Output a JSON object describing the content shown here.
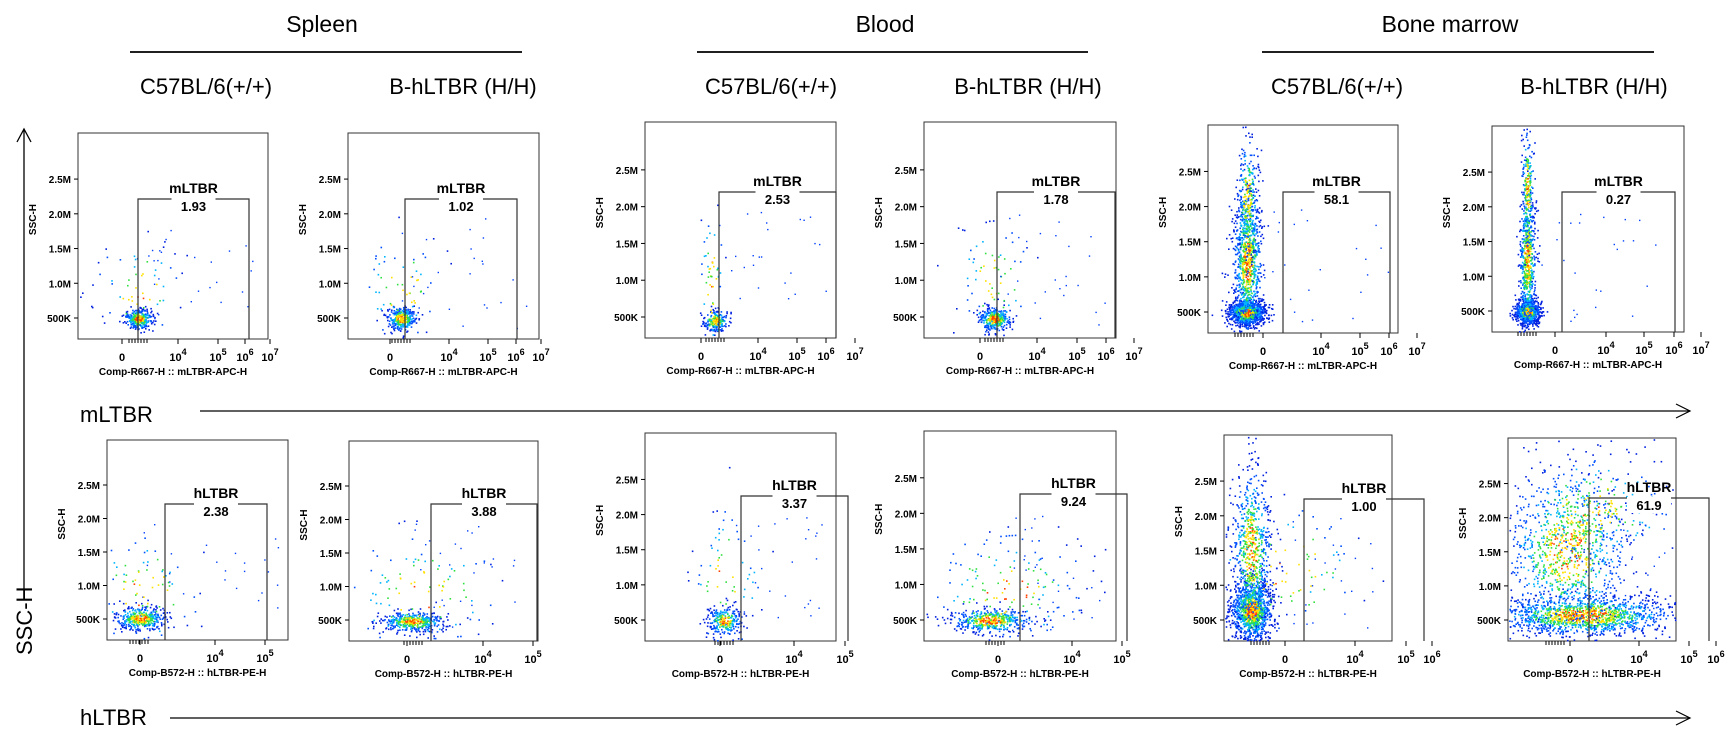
{
  "tissues": [
    "Spleen",
    "Blood",
    "Bone marrow"
  ],
  "genotypes": [
    "C57BL/6(+/+)",
    "B-hLTBR (H/H)"
  ],
  "y_axis_label": "SSC-H",
  "row_labels": [
    "mLTBR",
    "hLTBR"
  ],
  "chart_data": [
    {
      "type": "scatter",
      "tissue": "Spleen",
      "genotype": "C57BL/6(+/+)",
      "ylabel": "SSC-H",
      "xlabel": "Comp-R667-H :: mLTBR-APC-H",
      "yticks": [
        "500K",
        "1.0M",
        "1.5M",
        "2.0M",
        "2.5M"
      ],
      "xticks": [
        "0",
        "10^4",
        "10^5",
        "10^6",
        "10^7"
      ],
      "gate": {
        "name": "mLTBR",
        "value": "1.93"
      }
    },
    {
      "type": "scatter",
      "tissue": "Spleen",
      "genotype": "B-hLTBR (H/H)",
      "ylabel": "SSC-H",
      "xlabel": "Comp-R667-H :: mLTBR-APC-H",
      "yticks": [
        "500K",
        "1.0M",
        "1.5M",
        "2.0M",
        "2.5M"
      ],
      "xticks": [
        "0",
        "10^4",
        "10^5",
        "10^6",
        "10^7"
      ],
      "gate": {
        "name": "mLTBR",
        "value": "1.02"
      }
    },
    {
      "type": "scatter",
      "tissue": "Blood",
      "genotype": "C57BL/6(+/+)",
      "ylabel": "SSC-H",
      "xlabel": "Comp-R667-H :: mLTBR-APC-H",
      "yticks": [
        "500K",
        "1.0M",
        "1.5M",
        "2.0M",
        "2.5M"
      ],
      "xticks": [
        "0",
        "10^4",
        "10^5",
        "10^6",
        "10^7"
      ],
      "gate": {
        "name": "mLTBR",
        "value": "2.53"
      }
    },
    {
      "type": "scatter",
      "tissue": "Blood",
      "genotype": "B-hLTBR (H/H)",
      "ylabel": "SSC-H",
      "xlabel": "Comp-R667-H :: mLTBR-APC-H",
      "yticks": [
        "500K",
        "1.0M",
        "1.5M",
        "2.0M",
        "2.5M"
      ],
      "xticks": [
        "0",
        "10^4",
        "10^5",
        "10^6",
        "10^7"
      ],
      "gate": {
        "name": "mLTBR",
        "value": "1.78"
      }
    },
    {
      "type": "scatter",
      "tissue": "Bone marrow",
      "genotype": "C57BL/6(+/+)",
      "ylabel": "SSC-H",
      "xlabel": "Comp-R667-H :: mLTBR-APC-H",
      "yticks": [
        "500K",
        "1.0M",
        "1.5M",
        "2.0M",
        "2.5M"
      ],
      "xticks": [
        "0",
        "10^4",
        "10^5",
        "10^6",
        "10^7"
      ],
      "gate": {
        "name": "mLTBR",
        "value": "58.1"
      }
    },
    {
      "type": "scatter",
      "tissue": "Bone marrow",
      "genotype": "B-hLTBR (H/H)",
      "ylabel": "SSC-H",
      "xlabel": "Comp-R667-H :: mLTBR-APC-H",
      "yticks": [
        "500K",
        "1.0M",
        "1.5M",
        "2.0M",
        "2.5M"
      ],
      "xticks": [
        "0",
        "10^4",
        "10^5",
        "10^6",
        "10^7"
      ],
      "gate": {
        "name": "mLTBR",
        "value": "0.27"
      }
    },
    {
      "type": "scatter",
      "tissue": "Spleen",
      "genotype": "C57BL/6(+/+)",
      "ylabel": "SSC-H",
      "xlabel": "Comp-B572-H :: hLTBR-PE-H",
      "yticks": [
        "500K",
        "1.0M",
        "1.5M",
        "2.0M",
        "2.5M"
      ],
      "xticks": [
        "0",
        "10^4",
        "10^5"
      ],
      "gate": {
        "name": "hLTBR",
        "value": "2.38"
      }
    },
    {
      "type": "scatter",
      "tissue": "Spleen",
      "genotype": "B-hLTBR (H/H)",
      "ylabel": "SSC-H",
      "xlabel": "Comp-B572-H :: hLTBR-PE-H",
      "yticks": [
        "500K",
        "1.0M",
        "1.5M",
        "2.0M",
        "2.5M"
      ],
      "xticks": [
        "0",
        "10^4",
        "10^5"
      ],
      "gate": {
        "name": "hLTBR",
        "value": "3.88"
      }
    },
    {
      "type": "scatter",
      "tissue": "Blood",
      "genotype": "C57BL/6(+/+)",
      "ylabel": "SSC-H",
      "xlabel": "Comp-B572-H :: hLTBR-PE-H",
      "yticks": [
        "500K",
        "1.0M",
        "1.5M",
        "2.0M",
        "2.5M"
      ],
      "xticks": [
        "0",
        "10^4",
        "10^5"
      ],
      "gate": {
        "name": "hLTBR",
        "value": "3.37"
      }
    },
    {
      "type": "scatter",
      "tissue": "Blood",
      "genotype": "B-hLTBR (H/H)",
      "ylabel": "SSC-H",
      "xlabel": "Comp-B572-H :: hLTBR-PE-H",
      "yticks": [
        "500K",
        "1.0M",
        "1.5M",
        "2.0M",
        "2.5M"
      ],
      "xticks": [
        "0",
        "10^4",
        "10^5"
      ],
      "gate": {
        "name": "hLTBR",
        "value": "9.24"
      }
    },
    {
      "type": "scatter",
      "tissue": "Bone marrow",
      "genotype": "C57BL/6(+/+)",
      "ylabel": "SSC-H",
      "xlabel": "Comp-B572-H :: hLTBR-PE-H",
      "yticks": [
        "500K",
        "1.0M",
        "1.5M",
        "2.0M",
        "2.5M"
      ],
      "xticks": [
        "0",
        "10^4",
        "10^5",
        "10^6"
      ],
      "gate": {
        "name": "hLTBR",
        "value": "1.00"
      }
    },
    {
      "type": "scatter",
      "tissue": "Bone marrow",
      "genotype": "B-hLTBR (H/H)",
      "ylabel": "SSC-H",
      "xlabel": "Comp-B572-H :: hLTBR-PE-H",
      "yticks": [
        "500K",
        "1.0M",
        "1.5M",
        "2.0M",
        "2.5M"
      ],
      "xticks": [
        "0",
        "10^4",
        "10^5",
        "10^6"
      ],
      "gate": {
        "name": "hLTBR",
        "value": "61.9"
      }
    }
  ]
}
